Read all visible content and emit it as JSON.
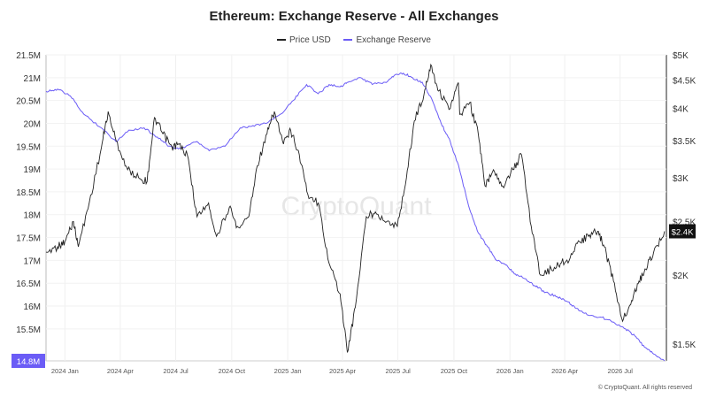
{
  "chart_data": {
    "type": "line",
    "title": "Ethereum: Exchange Reserve - All Exchanges",
    "watermark": "CryptoQuant",
    "copyright": "© CryptoQuant. All rights reserved",
    "legend_position": "top-center",
    "grid": true,
    "colors": {
      "price": "#222222",
      "reserve": "#6b5cf6",
      "badge_reserve": "#6b5cf6",
      "badge_price": "#111111"
    },
    "x_ticks": [
      "2024 Jan",
      "2024 Apr",
      "2024 Jul",
      "2024 Oct",
      "2025 Jan",
      "2025 Apr",
      "2025 Jul",
      "2025 Oct",
      "2026 Jan",
      "2026 Apr",
      "2026 Jul"
    ],
    "x_range": [
      "2023-12-01",
      "2026-09-15"
    ],
    "y_left": {
      "label": "",
      "ticks": [
        "21.5M",
        "21M",
        "20.5M",
        "20M",
        "19.5M",
        "19M",
        "18.5M",
        "18M",
        "17.5M",
        "17M",
        "16.5M",
        "16M",
        "15.5M"
      ],
      "range": [
        14.8,
        21.5
      ],
      "unit": "M"
    },
    "y_right": {
      "label": "",
      "scale": "log",
      "ticks": [
        "$5K",
        "$4.5K",
        "$4K",
        "$3.5K",
        "$3K",
        "$2.5K",
        "$2K",
        "$1.5K"
      ],
      "range": [
        1400,
        5000
      ]
    },
    "badges": {
      "reserve_last": "14.8M",
      "price_last": "$2.4K"
    },
    "series": [
      {
        "name": "Price USD",
        "axis": "right",
        "x": [
          "2023-12-01",
          "2023-12-20",
          "2024-01-01",
          "2024-01-15",
          "2024-01-23",
          "2024-02-10",
          "2024-03-01",
          "2024-03-12",
          "2024-03-25",
          "2024-04-13",
          "2024-05-01",
          "2024-05-15",
          "2024-05-27",
          "2024-06-10",
          "2024-06-25",
          "2024-07-05",
          "2024-07-20",
          "2024-08-05",
          "2024-08-24",
          "2024-09-06",
          "2024-09-27",
          "2024-10-10",
          "2024-10-29",
          "2024-11-12",
          "2024-11-28",
          "2024-12-10",
          "2024-12-25",
          "2025-01-06",
          "2025-01-20",
          "2025-02-03",
          "2025-02-20",
          "2025-03-10",
          "2025-03-28",
          "2025-04-09",
          "2025-04-22",
          "2025-05-10",
          "2025-05-25",
          "2025-06-13",
          "2025-06-30",
          "2025-07-15",
          "2025-07-28",
          "2025-08-13",
          "2025-08-24",
          "2025-09-06",
          "2025-09-25",
          "2025-10-08",
          "2025-10-11",
          "2025-10-27",
          "2025-11-10",
          "2025-11-21",
          "2025-12-05",
          "2025-12-20",
          "2026-01-06",
          "2026-01-20",
          "2026-02-05",
          "2026-02-20",
          "2026-03-10",
          "2026-03-25",
          "2026-04-10",
          "2026-04-25",
          "2026-05-10",
          "2026-05-25",
          "2026-06-05",
          "2026-06-20",
          "2026-07-05",
          "2026-07-20",
          "2026-08-01",
          "2026-08-12",
          "2026-08-25",
          "2026-09-12"
        ],
        "values": [
          2200,
          2250,
          2300,
          2500,
          2250,
          2700,
          3400,
          3950,
          3500,
          3100,
          3000,
          2950,
          3850,
          3600,
          3400,
          3450,
          3300,
          2550,
          2700,
          2350,
          2650,
          2450,
          2550,
          3150,
          3600,
          3950,
          3450,
          3650,
          3300,
          2800,
          2700,
          2100,
          1850,
          1450,
          1750,
          2550,
          2600,
          2500,
          2450,
          3000,
          3800,
          4250,
          4800,
          4300,
          4000,
          4450,
          3900,
          4100,
          3600,
          2900,
          3100,
          2900,
          3100,
          3300,
          2450,
          2000,
          2050,
          2100,
          2150,
          2300,
          2350,
          2400,
          2250,
          1950,
          1650,
          1800,
          1950,
          2050,
          2200,
          2400
        ]
      },
      {
        "name": "Exchange Reserve",
        "axis": "left",
        "x": [
          "2023-12-01",
          "2023-12-20",
          "2024-01-10",
          "2024-02-01",
          "2024-03-01",
          "2024-03-25",
          "2024-04-15",
          "2024-05-10",
          "2024-06-01",
          "2024-06-20",
          "2024-07-10",
          "2024-08-05",
          "2024-08-25",
          "2024-09-20",
          "2024-10-15",
          "2024-11-05",
          "2024-11-25",
          "2024-12-20",
          "2025-01-10",
          "2025-02-01",
          "2025-02-20",
          "2025-03-10",
          "2025-03-28",
          "2025-04-10",
          "2025-05-01",
          "2025-05-20",
          "2025-06-10",
          "2025-06-25",
          "2025-07-10",
          "2025-07-25",
          "2025-08-10",
          "2025-08-25",
          "2025-09-10",
          "2025-09-25",
          "2025-10-10",
          "2025-10-25",
          "2025-11-10",
          "2025-11-25",
          "2025-12-10",
          "2025-12-25",
          "2026-01-10",
          "2026-01-25",
          "2026-02-10",
          "2026-03-01",
          "2026-03-20",
          "2026-04-05",
          "2026-04-20",
          "2026-05-10",
          "2026-06-01",
          "2026-06-20",
          "2026-07-10",
          "2026-07-25",
          "2026-08-10",
          "2026-08-25",
          "2026-09-12"
        ],
        "values": [
          20.7,
          20.75,
          20.6,
          20.2,
          19.9,
          19.6,
          19.85,
          19.9,
          19.7,
          19.5,
          19.45,
          19.6,
          19.4,
          19.5,
          19.9,
          19.95,
          20.0,
          20.2,
          20.5,
          20.85,
          20.65,
          20.85,
          20.8,
          20.9,
          21.0,
          20.85,
          20.9,
          21.05,
          21.1,
          21.0,
          20.9,
          20.55,
          20.0,
          19.6,
          19.0,
          18.2,
          17.6,
          17.3,
          17.0,
          16.9,
          16.7,
          16.6,
          16.45,
          16.3,
          16.2,
          16.1,
          15.95,
          15.8,
          15.75,
          15.65,
          15.5,
          15.35,
          15.1,
          14.95,
          14.8
        ]
      }
    ]
  }
}
